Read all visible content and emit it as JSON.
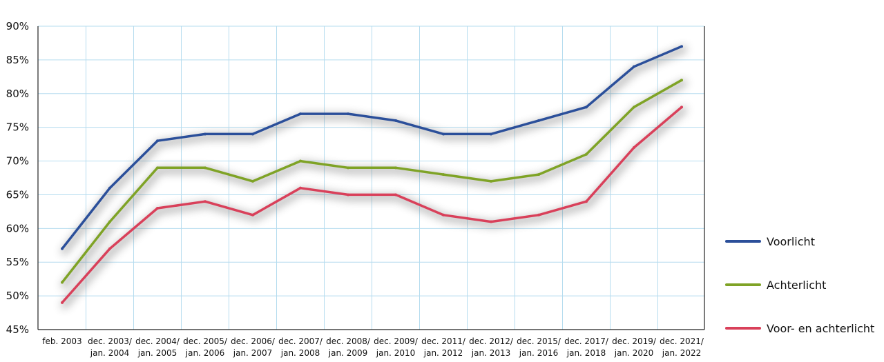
{
  "chart_data": {
    "type": "line",
    "title": "",
    "xlabel": "",
    "ylabel": "",
    "ylim": [
      45,
      90
    ],
    "grid": true,
    "legend": "right",
    "y_ticks": [
      "45%",
      "50%",
      "55%",
      "60%",
      "65%",
      "70%",
      "75%",
      "80%",
      "85%",
      "90%"
    ],
    "categories": [
      [
        "feb. 2003"
      ],
      [
        "dec. 2003/",
        "jan. 2004"
      ],
      [
        "dec. 2004/",
        "jan. 2005"
      ],
      [
        "dec. 2005/",
        "jan. 2006"
      ],
      [
        "dec. 2006/",
        "jan. 2007"
      ],
      [
        "dec. 2007/",
        "jan. 2008"
      ],
      [
        "dec. 2008/",
        "jan. 2009"
      ],
      [
        "dec. 2009/",
        "jan. 2010"
      ],
      [
        "dec. 2011/",
        "jan. 2012"
      ],
      [
        "dec. 2012/",
        "jan. 2013"
      ],
      [
        "dec. 2015/",
        "jan. 2016"
      ],
      [
        "dec. 2017/",
        "jan. 2018"
      ],
      [
        "dec. 2019/",
        "jan. 2020"
      ],
      [
        "dec. 2021/",
        "jan. 2022"
      ]
    ],
    "series": [
      {
        "name": "Voorlicht",
        "color": "#2b4f9a",
        "values": [
          57,
          66,
          73,
          74,
          74,
          77,
          77,
          76,
          74,
          74,
          76,
          78,
          84,
          87
        ]
      },
      {
        "name": "Achterlicht",
        "color": "#7fa326",
        "values": [
          52,
          61,
          69,
          69,
          67,
          70,
          69,
          69,
          68,
          67,
          68,
          71,
          78,
          82
        ]
      },
      {
        "name": "Voor- en achterlicht",
        "color": "#d9405a",
        "values": [
          49,
          57,
          63,
          64,
          62,
          66,
          65,
          65,
          62,
          61,
          62,
          64,
          72,
          78
        ]
      }
    ]
  }
}
